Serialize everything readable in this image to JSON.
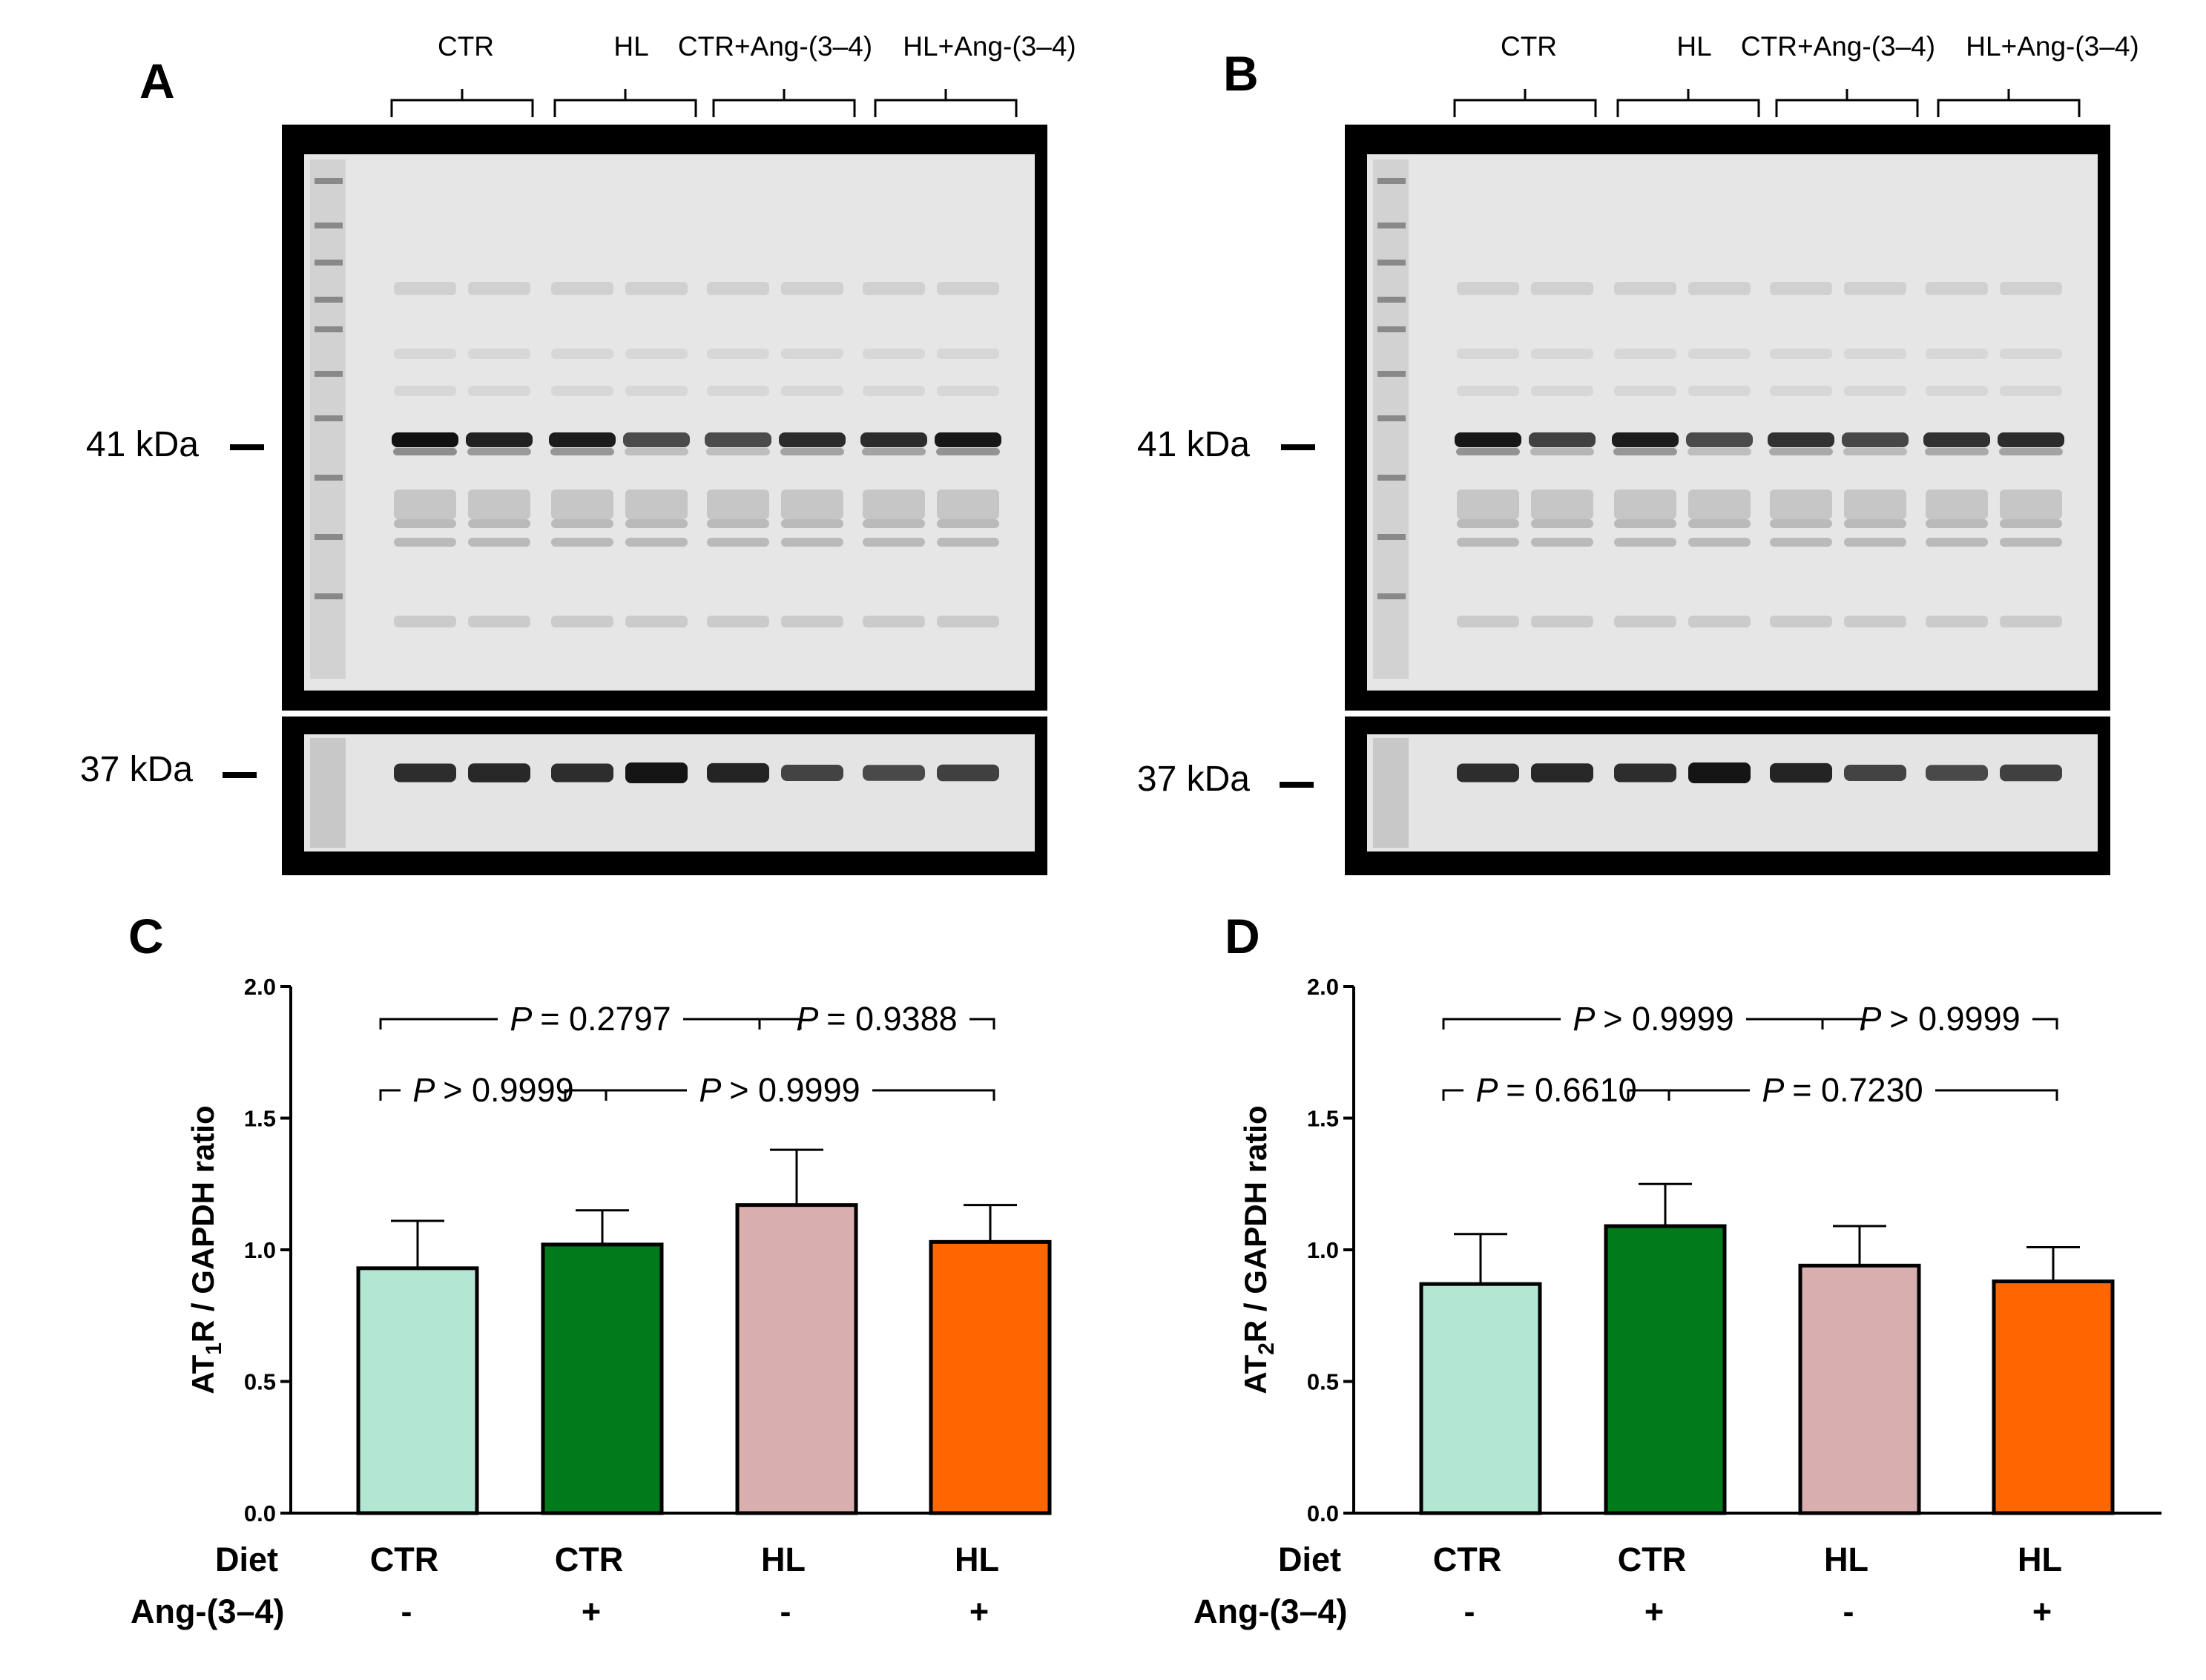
{
  "panels": {
    "A": {
      "label": "A",
      "groups": [
        "CTR",
        "HL",
        "CTR+Ang-(3–4)",
        "HL+Ang-(3–4)"
      ],
      "mw_top": "41 kDa",
      "mw_bottom": "37 kDa"
    },
    "B": {
      "label": "B",
      "groups": [
        "CTR",
        "HL",
        "CTR+Ang-(3–4)",
        "HL+Ang-(3–4)"
      ],
      "mw_top": "41 kDa",
      "mw_bottom": "37 kDa"
    }
  },
  "colors": {
    "ctr": "#b3e6d3",
    "ctr_ang": "#007a1a",
    "hl": "#d8aeae",
    "hl_ang": "#ff6600",
    "blot_frame": "#000000",
    "blot_bg": "#e6e6e6",
    "band": "#222222"
  },
  "chart_data": [
    {
      "panel_label": "C",
      "type": "bar",
      "categories": [
        "CTR / -",
        "CTR / +",
        "HL / -",
        "HL / +"
      ],
      "values": [
        0.93,
        1.02,
        1.17,
        1.03
      ],
      "error_upper": [
        0.18,
        0.13,
        0.21,
        0.14
      ],
      "ylim": [
        0,
        2.0
      ],
      "yticks": [
        "0.0",
        "0.5",
        "1.0",
        "1.5",
        "2.0"
      ],
      "ylabel": {
        "pre": "AT",
        "sub": "1",
        "post": "R / GAPDH ratio"
      },
      "row_labels": [
        "Diet",
        "Ang-(3–4)"
      ],
      "diet": [
        "CTR",
        "CTR",
        "HL",
        "HL"
      ],
      "ang": [
        "-",
        "+",
        "-",
        "+"
      ],
      "comparisons": [
        {
          "from": 0,
          "to": 2,
          "level": 1,
          "p_label": "P",
          "p_value": "= 0.2797"
        },
        {
          "from": 2,
          "to": 3,
          "level": 1,
          "p_label": "P",
          "p_value": "= 0.9388"
        },
        {
          "from": 0,
          "to": 1,
          "level": 0,
          "p_label": "P",
          "p_value": "> 0.9999"
        },
        {
          "from": 1,
          "to": 3,
          "level": 0,
          "p_label": "P",
          "p_value": "> 0.9999"
        }
      ]
    },
    {
      "panel_label": "D",
      "type": "bar",
      "categories": [
        "CTR / -",
        "CTR / +",
        "HL / -",
        "HL / +"
      ],
      "values": [
        0.87,
        1.09,
        0.94,
        0.88
      ],
      "error_upper": [
        0.19,
        0.16,
        0.15,
        0.13
      ],
      "ylim": [
        0,
        2.0
      ],
      "yticks": [
        "0.0",
        "0.5",
        "1.0",
        "1.5",
        "2.0"
      ],
      "ylabel": {
        "pre": "AT",
        "sub": "2",
        "post": "R / GAPDH ratio"
      },
      "row_labels": [
        "Diet",
        "Ang-(3–4)"
      ],
      "diet": [
        "CTR",
        "CTR",
        "HL",
        "HL"
      ],
      "ang": [
        "-",
        "+",
        "-",
        "+"
      ],
      "comparisons": [
        {
          "from": 0,
          "to": 2,
          "level": 1,
          "p_label": "P",
          "p_value": "> 0.9999"
        },
        {
          "from": 2,
          "to": 3,
          "level": 1,
          "p_label": "P",
          "p_value": "> 0.9999"
        },
        {
          "from": 0,
          "to": 1,
          "level": 0,
          "p_label": "P",
          "p_value": "= 0.6610"
        },
        {
          "from": 1,
          "to": 3,
          "level": 0,
          "p_label": "P",
          "p_value": "= 0.7230"
        }
      ]
    }
  ]
}
